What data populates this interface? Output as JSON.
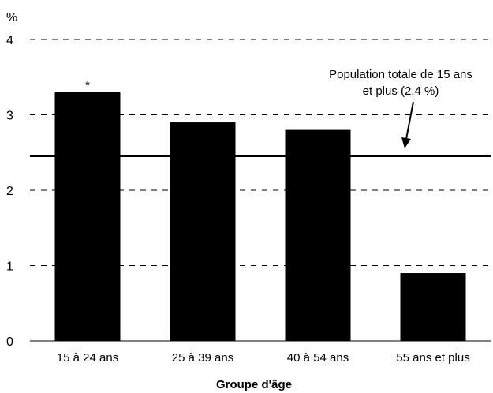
{
  "chart_data": {
    "type": "bar",
    "title": "",
    "ylabel": "%",
    "xlabel": "Groupe d'âge",
    "categories": [
      "15 à 24 ans",
      "25 à 39 ans",
      "40 à 54 ans",
      "55 ans et plus"
    ],
    "values": [
      3.3,
      2.9,
      2.8,
      0.9
    ],
    "bar_markers": [
      "*",
      "",
      "",
      ""
    ],
    "ylim": [
      0,
      4
    ],
    "yticks": [
      "0",
      "1",
      "2",
      "3",
      "4"
    ],
    "grid": "dashed horizontal",
    "reference_line": {
      "value": 2.45,
      "label_line1": "Population totale de 15 ans",
      "label_line2": "et plus (2,4 %)"
    },
    "bar_color": "#000000"
  }
}
